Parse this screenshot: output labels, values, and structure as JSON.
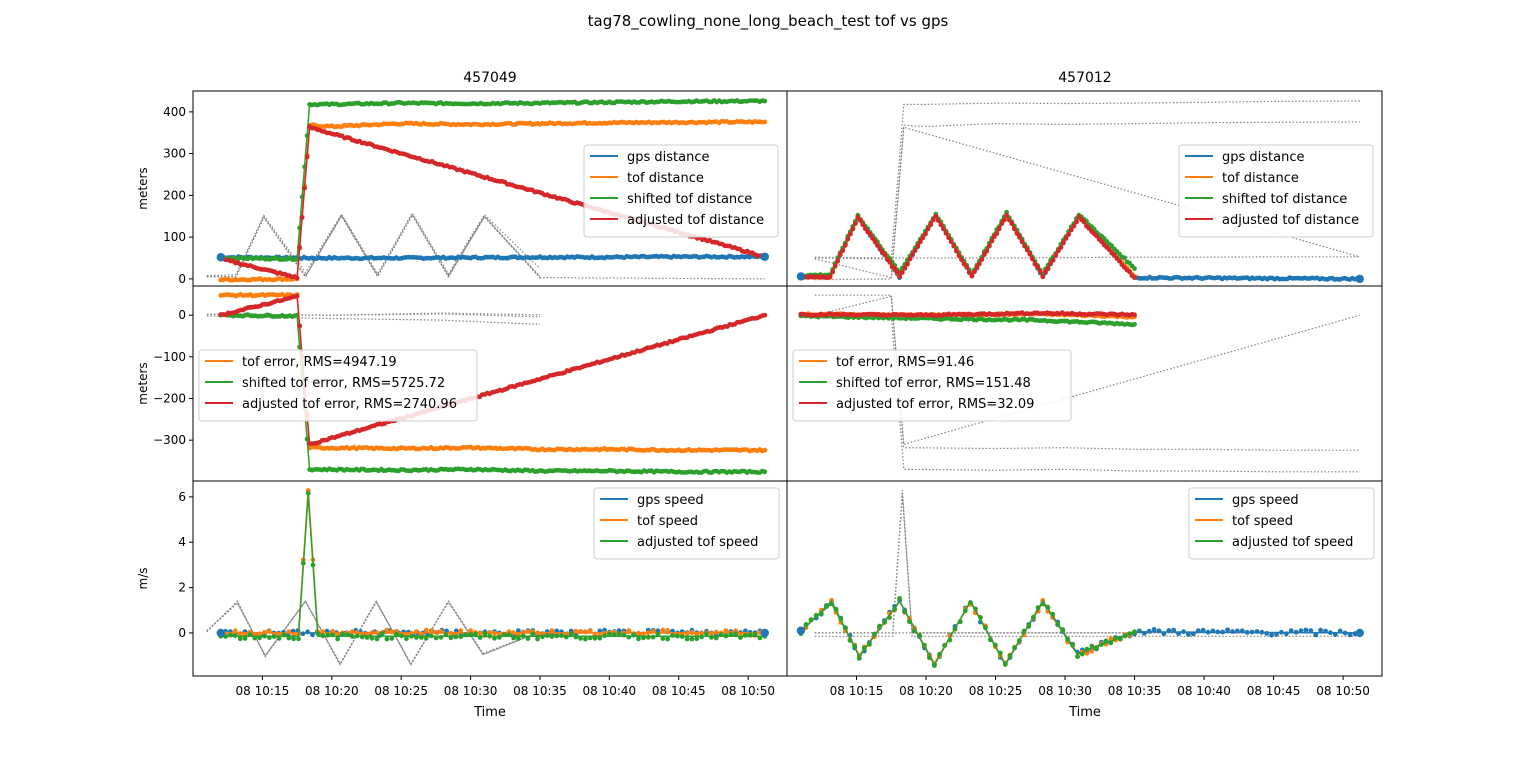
{
  "figure": {
    "suptitle": "tag78_cowling_none_long_beach_test tof vs gps"
  },
  "colors": {
    "gps": "#1f77b4",
    "tof": "#ff7f0e",
    "shifted": "#2ca02c",
    "adjusted": "#d62728",
    "ghost": "#808080"
  },
  "columns": [
    {
      "title": "457049"
    },
    {
      "title": "457012"
    }
  ],
  "x_axis": {
    "label": "Time",
    "ticks": [
      "08 10:15",
      "08 10:20",
      "08 10:25",
      "08 10:30",
      "08 10:35",
      "08 10:40",
      "08 10:45",
      "08 10:50"
    ],
    "tick_minutes": [
      15,
      20,
      25,
      30,
      35,
      40,
      45,
      50
    ],
    "range_minutes": [
      10.0,
      52.8
    ]
  },
  "rows": [
    {
      "ylabel": "meters",
      "ylim": [
        -17,
        450
      ],
      "yticks": [
        0,
        100,
        200,
        300,
        400
      ],
      "ytick_labels": [
        "0",
        "100",
        "200",
        "300",
        "400"
      ],
      "legends": [
        [
          "gps distance",
          "tof distance",
          "shifted tof distance",
          "adjusted tof distance"
        ],
        [
          "gps distance",
          "tof distance",
          "shifted tof distance",
          "adjusted tof distance"
        ]
      ],
      "legend_keys": [
        [
          "gps",
          "tof",
          "shifted",
          "adjusted"
        ],
        [
          "gps",
          "tof",
          "shifted",
          "adjusted"
        ]
      ]
    },
    {
      "ylabel": "meters",
      "ylim": [
        -398,
        70
      ],
      "yticks": [
        0,
        -100,
        -200,
        -300
      ],
      "ytick_labels": [
        "0",
        "−100",
        "−200",
        "−300"
      ],
      "legends": [
        [
          "tof error, RMS=4947.19",
          "shifted tof error, RMS=5725.72",
          "adjusted tof error, RMS=2740.96"
        ],
        [
          "tof error, RMS=91.46",
          "shifted tof error, RMS=151.48",
          "adjusted tof error, RMS=32.09"
        ]
      ],
      "legend_keys": [
        [
          "tof",
          "shifted",
          "adjusted"
        ],
        [
          "tof",
          "shifted",
          "adjusted"
        ]
      ]
    },
    {
      "ylabel": "m/s",
      "ylim": [
        -1.9,
        6.7
      ],
      "yticks": [
        0,
        2,
        4,
        6
      ],
      "ytick_labels": [
        "0",
        "2",
        "4",
        "6"
      ],
      "legends": [
        [
          "gps speed",
          "tof speed",
          "adjusted tof speed"
        ],
        [
          "gps speed",
          "tof speed",
          "adjusted tof speed"
        ]
      ],
      "legend_keys": [
        [
          "gps",
          "tof",
          "shifted"
        ],
        [
          "gps",
          "tof",
          "shifted"
        ]
      ]
    }
  ],
  "chart_data": [
    {
      "type": "line",
      "column": "457049",
      "row": 0,
      "ylabel": "meters",
      "series": [
        {
          "name": "gps distance",
          "x": [
            12,
            18,
            20,
            25,
            30,
            35,
            40,
            45,
            51.2
          ],
          "y": [
            52,
            50,
            50,
            50,
            51,
            52,
            52,
            53,
            53
          ]
        },
        {
          "name": "tof distance",
          "x": [
            12,
            17.5,
            18.4,
            20,
            25,
            30,
            35,
            40,
            45,
            51.2
          ],
          "y": [
            -2,
            0,
            368,
            365,
            372,
            370,
            372,
            374,
            375,
            376
          ]
        },
        {
          "name": "shifted tof distance",
          "x": [
            12,
            17.5,
            18.4,
            20,
            25,
            30,
            35,
            40,
            45,
            51.2
          ],
          "y": [
            50,
            48,
            418,
            418,
            421,
            420,
            421,
            423,
            425,
            426
          ]
        },
        {
          "name": "adjusted tof distance",
          "x": [
            12,
            17.5,
            18.4,
            51.2
          ],
          "y": [
            48,
            3,
            363,
            53
          ]
        }
      ]
    },
    {
      "type": "line",
      "column": "457012",
      "row": 0,
      "ylabel": "meters",
      "series": [
        {
          "name": "gps distance",
          "x": [
            11,
            13.1,
            15.1,
            18.1,
            20.7,
            23.3,
            25.8,
            28.4,
            31,
            35,
            51.2
          ],
          "y": [
            6,
            5,
            148,
            5,
            152,
            6,
            154,
            5,
            150,
            3,
            0
          ]
        },
        {
          "name": "tof distance",
          "x": [
            11,
            13.1,
            15.1,
            18.1,
            20.7,
            23.3,
            25.8,
            28.4,
            31,
            35
          ],
          "y": [
            5,
            5,
            148,
            8,
            152,
            8,
            154,
            8,
            150,
            6
          ]
        },
        {
          "name": "shifted tof distance",
          "x": [
            11,
            13.1,
            15.1,
            18.1,
            20.7,
            23.3,
            25.8,
            28.4,
            31,
            35
          ],
          "y": [
            8,
            10,
            152,
            15,
            155,
            12,
            158,
            12,
            154,
            25
          ]
        },
        {
          "name": "adjusted tof distance",
          "x": [
            11,
            13.1,
            15.1,
            18.1,
            20.7,
            23.3,
            25.8,
            28.4,
            31,
            35
          ],
          "y": [
            5,
            5,
            147,
            6,
            150,
            6,
            152,
            6,
            148,
            3
          ]
        }
      ]
    },
    {
      "type": "line",
      "column": "457049",
      "row": 1,
      "ylabel": "meters",
      "series": [
        {
          "name": "tof error, RMS=4947.19",
          "x": [
            12,
            17.5,
            18.4,
            25,
            30,
            35,
            40,
            45,
            51.2
          ],
          "y": [
            48,
            48,
            -318,
            -320,
            -318,
            -322,
            -322,
            -324,
            -324
          ]
        },
        {
          "name": "shifted tof error, RMS=5725.72",
          "x": [
            12,
            17.5,
            18.4,
            25,
            30,
            35,
            40,
            45,
            51.2
          ],
          "y": [
            0,
            -2,
            -370,
            -372,
            -370,
            -374,
            -374,
            -376,
            -376
          ]
        },
        {
          "name": "adjusted tof error, RMS=2740.96",
          "x": [
            12,
            17.5,
            18.4,
            51.2
          ],
          "y": [
            0,
            45,
            -310,
            0
          ]
        }
      ]
    },
    {
      "type": "line",
      "column": "457012",
      "row": 1,
      "ylabel": "meters",
      "series": [
        {
          "name": "tof error, RMS=91.46",
          "x": [
            11,
            20,
            28,
            35
          ],
          "y": [
            2,
            0,
            3,
            -4
          ]
        },
        {
          "name": "shifted tof error, RMS=151.48",
          "x": [
            11,
            20,
            28,
            35
          ],
          "y": [
            -2,
            -8,
            -12,
            -22
          ]
        },
        {
          "name": "adjusted tof error, RMS=32.09",
          "x": [
            11,
            20,
            28,
            35
          ],
          "y": [
            2,
            0,
            5,
            1
          ]
        }
      ]
    },
    {
      "type": "line",
      "column": "457049",
      "row": 2,
      "ylabel": "m/s",
      "series": [
        {
          "name": "gps speed",
          "x": [
            12,
            20,
            30,
            40,
            51.2
          ],
          "y": [
            0,
            0,
            0,
            0,
            0
          ]
        },
        {
          "name": "tof speed",
          "x": [
            12,
            17.6,
            18.3,
            19.0,
            30,
            40,
            51.2
          ],
          "y": [
            0,
            0,
            6.3,
            0,
            0,
            0,
            0
          ]
        },
        {
          "name": "adjusted tof speed",
          "x": [
            12,
            17.6,
            18.3,
            19.0,
            30,
            40,
            51.2
          ],
          "y": [
            -0.15,
            -0.15,
            6.1,
            -0.15,
            -0.15,
            -0.15,
            -0.15
          ]
        }
      ]
    },
    {
      "type": "line",
      "column": "457012",
      "row": 2,
      "ylabel": "m/s",
      "series": [
        {
          "name": "gps speed",
          "x": [
            11,
            13.2,
            15.2,
            18.1,
            20.6,
            23.2,
            25.7,
            28.4,
            30.9,
            35,
            51.2
          ],
          "y": [
            0.1,
            1.3,
            -1.0,
            1.4,
            -1.4,
            1.4,
            -1.4,
            1.4,
            -0.9,
            0.05,
            0
          ]
        },
        {
          "name": "tof speed",
          "x": [
            11,
            13.2,
            15.2,
            18.1,
            20.6,
            23.2,
            25.7,
            28.4,
            30.9,
            35
          ],
          "y": [
            0.1,
            1.35,
            -1.0,
            1.4,
            -1.35,
            1.35,
            -1.35,
            1.35,
            -0.95,
            0.05
          ]
        },
        {
          "name": "adjusted tof speed",
          "x": [
            11,
            13.2,
            15.2,
            18.1,
            20.6,
            23.2,
            25.7,
            28.4,
            30.9,
            35
          ],
          "y": [
            0.05,
            1.4,
            -1.05,
            1.4,
            -1.4,
            1.4,
            -1.4,
            1.4,
            -0.95,
            0.05
          ]
        }
      ]
    }
  ]
}
